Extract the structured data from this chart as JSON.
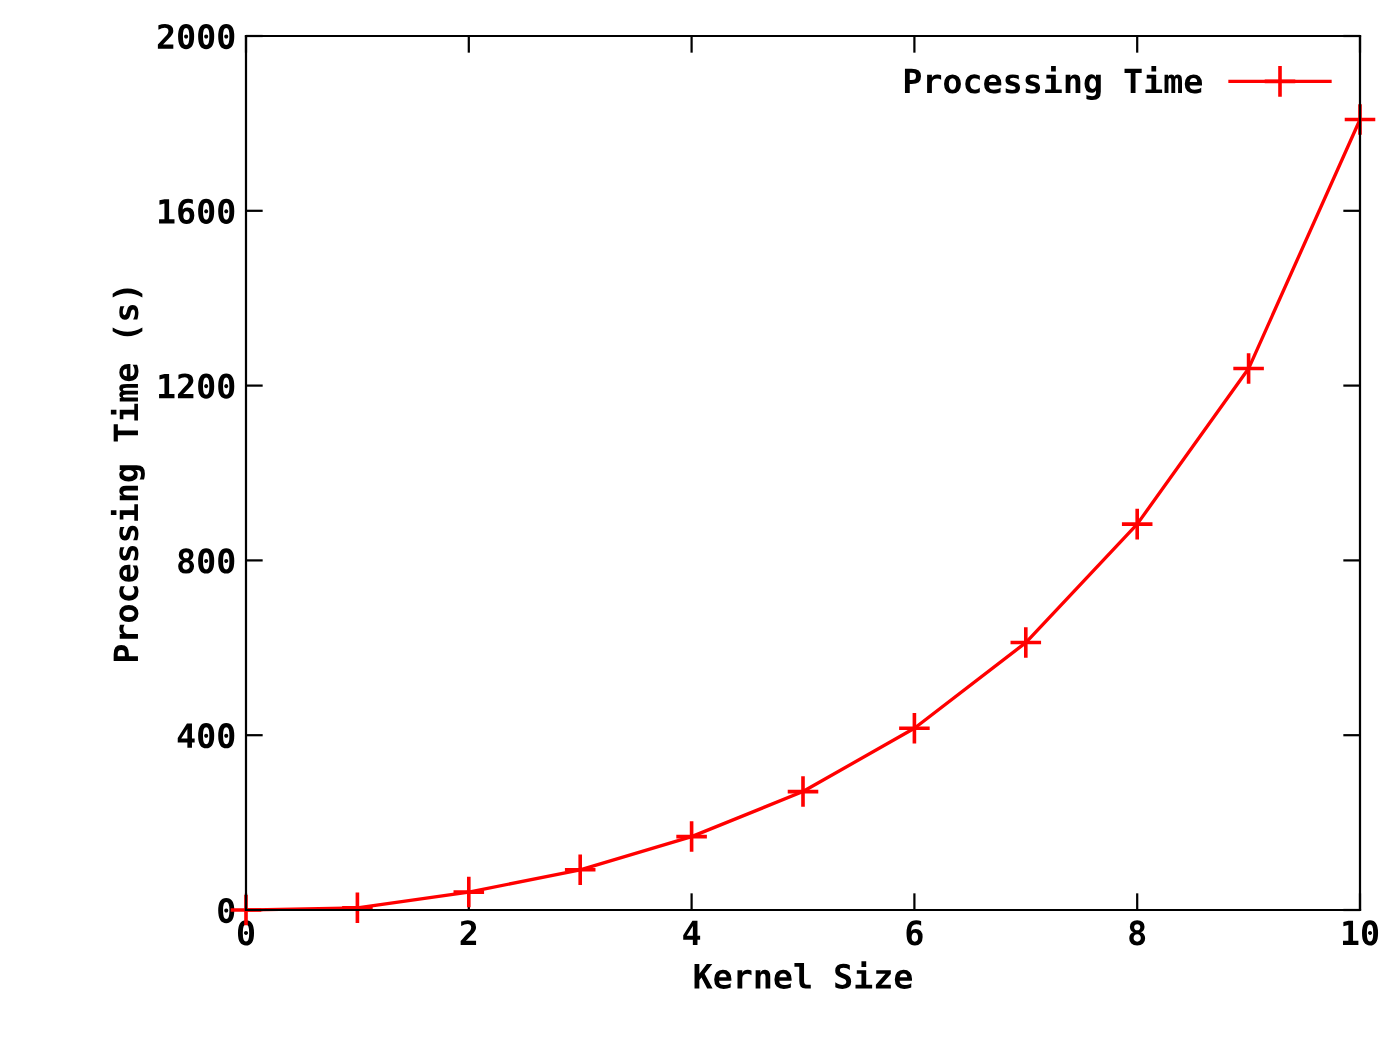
{
  "chart_data": {
    "type": "line",
    "xlabel": "Kernel Size",
    "ylabel": "Processing Time (s)",
    "x": [
      0,
      1,
      2,
      3,
      4,
      5,
      6,
      7,
      8,
      9,
      10
    ],
    "series": [
      {
        "name": "Processing Time",
        "color": "#ff0000",
        "values": [
          0,
          5,
          41,
          92,
          168,
          271,
          416,
          612,
          883,
          1239,
          1809
        ]
      }
    ],
    "xlim": [
      0,
      10
    ],
    "xticks": [
      0,
      2,
      4,
      6,
      8,
      10
    ],
    "ylim": [
      0,
      2000
    ],
    "yticks": [
      0,
      400,
      800,
      1200,
      1600,
      2000
    ],
    "marker": "cross",
    "legend": "top right",
    "grid": false
  }
}
